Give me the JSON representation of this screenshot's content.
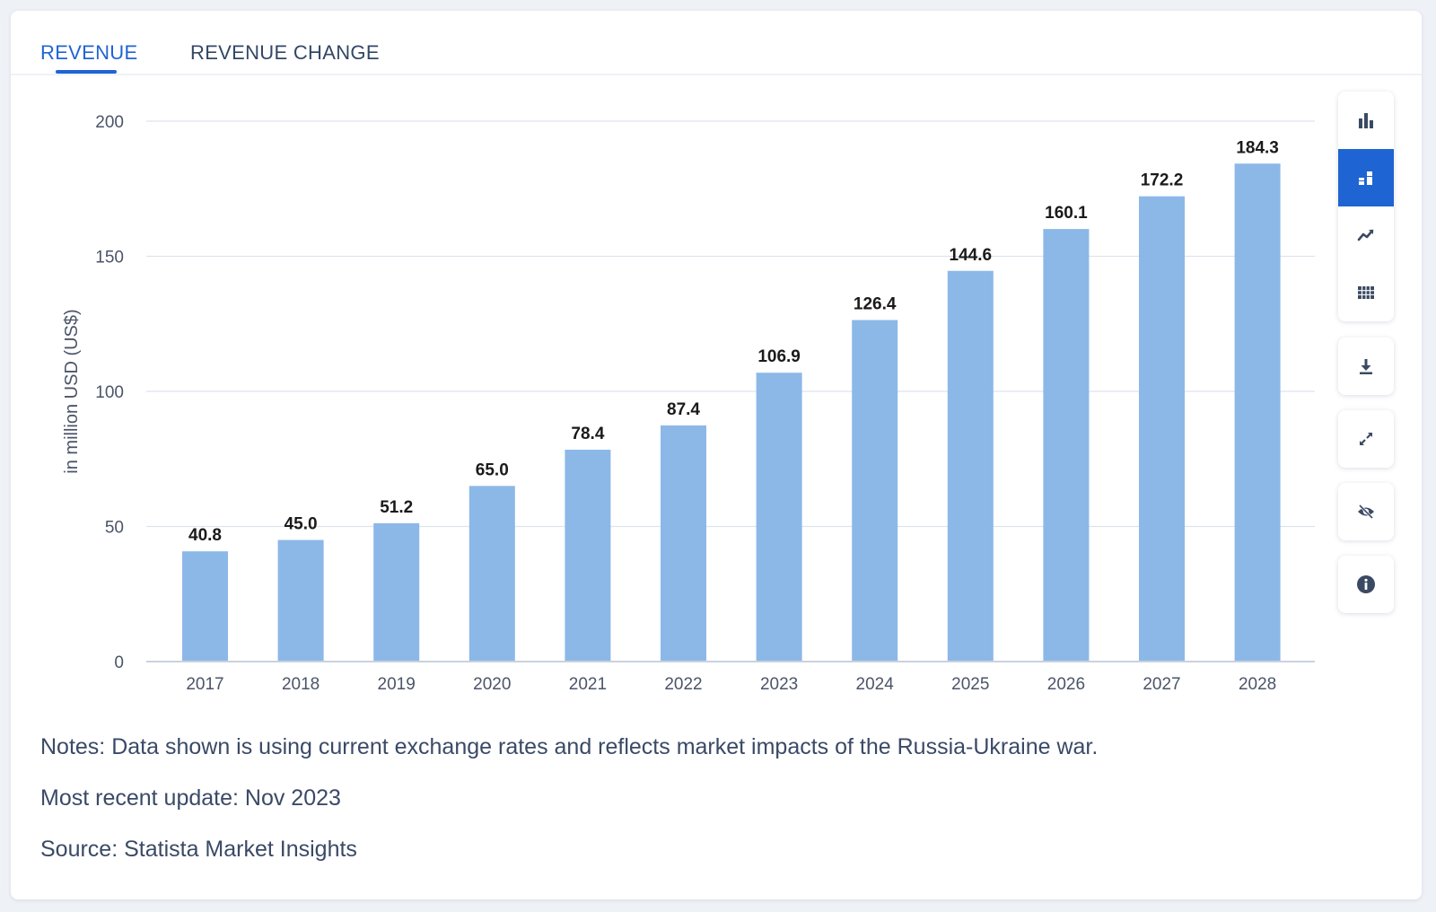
{
  "tabs": [
    {
      "label": "REVENUE",
      "active": true
    },
    {
      "label": "REVENUE CHANGE",
      "active": false
    }
  ],
  "toolbar": [
    {
      "icon": "bar-chart-icon",
      "active": false
    },
    {
      "icon": "stacked-chart-icon",
      "active": true
    },
    {
      "icon": "trend-line-icon",
      "active": false
    },
    {
      "icon": "table-grid-icon",
      "active": false
    },
    {
      "icon": "download-icon",
      "active": false
    },
    {
      "icon": "expand-icon",
      "active": false
    },
    {
      "icon": "hide-eye-icon",
      "active": false
    },
    {
      "icon": "info-icon",
      "active": false
    }
  ],
  "colors": {
    "bar": "#8cb8e8",
    "accent": "#1f64d3",
    "grid": "#dde3ec",
    "axis_text": "#4a5568",
    "label_text": "#1a1a1a",
    "icon": "#3b4a63"
  },
  "chart_data": {
    "type": "bar",
    "title": "",
    "xlabel": "",
    "ylabel": "in million USD (US$)",
    "categories": [
      "2017",
      "2018",
      "2019",
      "2020",
      "2021",
      "2022",
      "2023",
      "2024",
      "2025",
      "2026",
      "2027",
      "2028"
    ],
    "values": [
      40.8,
      45.0,
      51.2,
      65.0,
      78.4,
      87.4,
      106.9,
      126.4,
      144.6,
      160.1,
      172.2,
      184.3
    ],
    "value_labels": [
      "40.8",
      "45.0",
      "51.2",
      "65.0",
      "78.4",
      "87.4",
      "106.9",
      "126.4",
      "144.6",
      "160.1",
      "172.2",
      "184.3"
    ],
    "ylim": [
      0,
      200
    ],
    "yticks": [
      0,
      50,
      100,
      150,
      200
    ],
    "grid": true,
    "legend": "none"
  },
  "notes": {
    "note": "Notes: Data shown is using current exchange rates and reflects market impacts of the Russia-Ukraine war.",
    "update": "Most recent update: Nov 2023",
    "source": "Source: Statista Market Insights"
  }
}
